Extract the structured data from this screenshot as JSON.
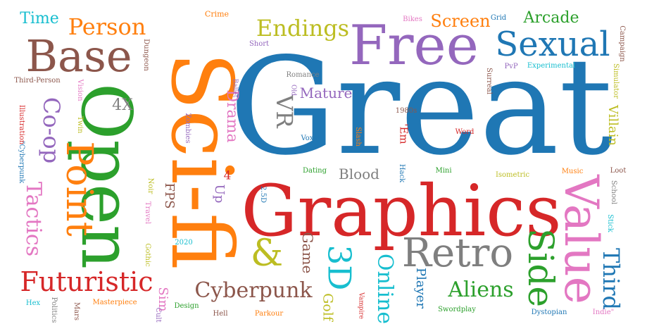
{
  "palette": {
    "blue": "#1f77b4",
    "orange": "#ff7f0e",
    "green": "#2ca02c",
    "red": "#d62728",
    "purple": "#9467bd",
    "brown": "#8c564b",
    "pink": "#e377c2",
    "gray": "#7f7f7f",
    "olive": "#bcbd22",
    "cyan": "#17becf"
  },
  "words": [
    {
      "text": "Great",
      "color": "blue",
      "rotated": false
    },
    {
      "text": "Sci-fi",
      "color": "orange",
      "rotated": true
    },
    {
      "text": "Open",
      "color": "green",
      "rotated": true
    },
    {
      "text": "Graphics",
      "color": "red",
      "rotated": false
    },
    {
      "text": "Free",
      "color": "purple",
      "rotated": false
    },
    {
      "text": "Base",
      "color": "brown",
      "rotated": false
    },
    {
      "text": "Value",
      "color": "pink",
      "rotated": true
    },
    {
      "text": "Retro",
      "color": "gray",
      "rotated": false
    },
    {
      "text": "Sexual",
      "color": "blue",
      "rotated": false
    },
    {
      "text": "Point",
      "color": "orange",
      "rotated": true
    },
    {
      "text": "Side",
      "color": "green",
      "rotated": true
    },
    {
      "text": "Futuristic",
      "color": "red",
      "rotated": false
    },
    {
      "text": "3D",
      "color": "cyan",
      "rotated": true
    },
    {
      "text": "Cyberpunk",
      "color": "brown",
      "rotated": false
    },
    {
      "text": "Aliens",
      "color": "green",
      "rotated": false
    },
    {
      "text": "Endings",
      "color": "olive",
      "rotated": false
    },
    {
      "text": "Person",
      "color": "orange",
      "rotated": false
    },
    {
      "text": "Co-op",
      "color": "purple",
      "rotated": true
    },
    {
      "text": "&",
      "color": "olive",
      "rotated": false
    },
    {
      "text": "Third",
      "color": "blue",
      "rotated": true
    },
    {
      "text": "Tactics",
      "color": "pink",
      "rotated": true
    },
    {
      "text": "Online",
      "color": "cyan",
      "rotated": true
    },
    {
      "text": "VR",
      "color": "gray",
      "rotated": true
    },
    {
      "text": "Screen",
      "color": "orange",
      "rotated": false
    },
    {
      "text": "Arcade",
      "color": "green",
      "rotated": false
    },
    {
      "text": "Time",
      "color": "cyan",
      "rotated": false
    },
    {
      "text": "Mature",
      "color": "purple",
      "rotated": false
    },
    {
      "text": "Blood",
      "color": "gray",
      "rotated": false
    },
    {
      "text": "Drama",
      "color": "pink",
      "rotated": true
    },
    {
      "text": "4X",
      "color": "gray",
      "rotated": false
    },
    {
      "text": "Villain",
      "color": "olive",
      "rotated": true
    },
    {
      "text": "Game",
      "color": "brown",
      "rotated": true
    },
    {
      "text": "Golf",
      "color": "olive",
      "rotated": true
    },
    {
      "text": "Player",
      "color": "blue",
      "rotated": true
    },
    {
      "text": "Sim",
      "color": "pink",
      "rotated": true
    },
    {
      "text": "FPS",
      "color": "brown",
      "rotated": true
    },
    {
      "text": "Up",
      "color": "purple",
      "rotated": true
    },
    {
      "text": "4",
      "color": "red",
      "rotated": false
    },
    {
      "text": "'Em",
      "color": "red",
      "rotated": true
    },
    {
      "text": "Crime",
      "color": "orange",
      "rotated": false
    },
    {
      "text": "Bikes",
      "color": "pink",
      "rotated": false
    },
    {
      "text": "Grid",
      "color": "blue",
      "rotated": false
    },
    {
      "text": "Campaign",
      "color": "brown",
      "rotated": true
    },
    {
      "text": "Dungeon",
      "color": "brown",
      "rotated": true
    },
    {
      "text": "Short",
      "color": "purple",
      "rotated": false
    },
    {
      "text": "PvP",
      "color": "purple",
      "rotated": false
    },
    {
      "text": "Experimental",
      "color": "cyan",
      "rotated": false
    },
    {
      "text": "Surreal",
      "color": "brown",
      "rotated": true
    },
    {
      "text": "Simulator",
      "color": "olive",
      "rotated": true
    },
    {
      "text": "Third-Person",
      "color": "brown",
      "rotated": false
    },
    {
      "text": "Romance",
      "color": "gray",
      "rotated": false
    },
    {
      "text": "Old",
      "color": "purple",
      "rotated": true
    },
    {
      "text": "Ballet",
      "color": "purple",
      "rotated": true
    },
    {
      "text": "Vision",
      "color": "pink",
      "rotated": true
    },
    {
      "text": "Twin",
      "color": "olive",
      "rotated": true
    },
    {
      "text": "Illustration",
      "color": "red",
      "rotated": true
    },
    {
      "text": "\"Cyberpunk",
      "color": "blue",
      "rotated": true
    },
    {
      "text": "Zombies",
      "color": "purple",
      "rotated": true
    },
    {
      "text": "1980s",
      "color": "brown",
      "rotated": false
    },
    {
      "text": "Word",
      "color": "red",
      "rotated": false
    },
    {
      "text": "Voxel",
      "color": "blue",
      "rotated": false
    },
    {
      "text": "Slash",
      "color": "orange",
      "rotated": true
    },
    {
      "text": "Dating",
      "color": "green",
      "rotated": false
    },
    {
      "text": "Hack",
      "color": "blue",
      "rotated": true
    },
    {
      "text": "Mini",
      "color": "green",
      "rotated": false
    },
    {
      "text": "Isometric",
      "color": "olive",
      "rotated": false
    },
    {
      "text": "Music",
      "color": "orange",
      "rotated": false
    },
    {
      "text": "Loot",
      "color": "brown",
      "rotated": false
    },
    {
      "text": "School",
      "color": "gray",
      "rotated": true
    },
    {
      "text": "Stick",
      "color": "cyan",
      "rotated": true
    },
    {
      "text": "Noir",
      "color": "olive",
      "rotated": true
    },
    {
      "text": "Travel",
      "color": "pink",
      "rotated": true
    },
    {
      "text": "2.5D",
      "color": "blue",
      "rotated": true
    },
    {
      "text": "Gothic",
      "color": "olive",
      "rotated": true
    },
    {
      "text": "2020",
      "color": "cyan",
      "rotated": false
    },
    {
      "text": "Hex",
      "color": "cyan",
      "rotated": false
    },
    {
      "text": "Politics",
      "color": "gray",
      "rotated": true
    },
    {
      "text": "Mars",
      "color": "brown",
      "rotated": true
    },
    {
      "text": "Masterpiece",
      "color": "orange",
      "rotated": false
    },
    {
      "text": "Cult",
      "color": "purple",
      "rotated": true
    },
    {
      "text": "Design",
      "color": "green",
      "rotated": false
    },
    {
      "text": "Hell",
      "color": "brown",
      "rotated": false
    },
    {
      "text": "Parkour",
      "color": "orange",
      "rotated": false
    },
    {
      "text": "Vampire",
      "color": "red",
      "rotated": true
    },
    {
      "text": "Swordplay",
      "color": "green",
      "rotated": false
    },
    {
      "text": "Dystopian",
      "color": "blue",
      "rotated": false
    },
    {
      "text": "Indie\"",
      "color": "pink",
      "rotated": false
    }
  ]
}
